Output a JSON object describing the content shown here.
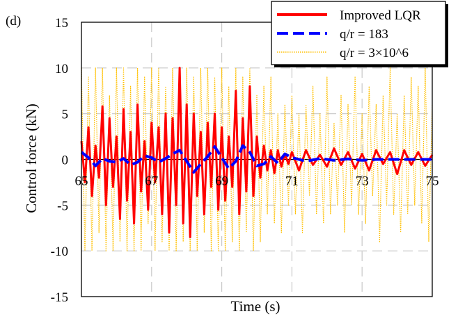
{
  "chart_data": {
    "type": "line",
    "panel_label": "(d)",
    "xlabel": "Time (s)",
    "ylabel": "Control force (kN)",
    "xlim": [
      65,
      75
    ],
    "ylim": [
      -15,
      15
    ],
    "xticks": [
      65,
      67,
      69,
      71,
      73,
      75
    ],
    "xtick_labels": [
      "65",
      "67",
      "69",
      "71",
      "73",
      "75"
    ],
    "yticks": [
      -15,
      -10,
      -5,
      0,
      5,
      10,
      15
    ],
    "ytick_labels": [
      "-15",
      "-10",
      "-5",
      "0",
      "5",
      "10",
      "15"
    ],
    "grid": true,
    "legend_position": "top-right",
    "series": [
      {
        "name": "Improved LQR",
        "color": "#ff0000",
        "style": "solid",
        "x": [
          65.0,
          65.1,
          65.2,
          65.3,
          65.4,
          65.5,
          65.6,
          65.7,
          65.8,
          65.9,
          66.0,
          66.1,
          66.2,
          66.3,
          66.4,
          66.5,
          66.6,
          66.7,
          66.8,
          66.9,
          67.0,
          67.1,
          67.2,
          67.3,
          67.4,
          67.5,
          67.6,
          67.7,
          67.8,
          67.9,
          68.0,
          68.1,
          68.2,
          68.3,
          68.4,
          68.5,
          68.6,
          68.7,
          68.8,
          68.9,
          69.0,
          69.1,
          69.2,
          69.3,
          69.4,
          69.5,
          69.6,
          69.7,
          69.8,
          69.9,
          70.0,
          70.1,
          70.2,
          70.3,
          70.4,
          70.5,
          70.6,
          70.7,
          70.8,
          70.9,
          71.0,
          71.2,
          71.4,
          71.6,
          71.8,
          72.0,
          72.2,
          72.4,
          72.6,
          72.8,
          73.0,
          73.2,
          73.4,
          73.6,
          73.8,
          74.0,
          74.2,
          74.4,
          74.6,
          74.8,
          75.0
        ],
        "values": [
          2.0,
          -2.5,
          3.5,
          -4.0,
          1.5,
          -2.0,
          5.8,
          -5.0,
          4.5,
          -3.0,
          2.5,
          -6.5,
          5.5,
          -4.5,
          3.0,
          -7.0,
          6.0,
          -3.5,
          2.0,
          -5.5,
          4.0,
          -2.5,
          3.5,
          -6.0,
          5.0,
          -8.0,
          4.5,
          -5.0,
          10.0,
          -7.0,
          6.0,
          -8.5,
          5.0,
          -4.0,
          3.0,
          -6.0,
          4.0,
          -3.0,
          5.0,
          -5.5,
          3.5,
          -4.5,
          2.5,
          -3.0,
          7.5,
          -6.0,
          4.5,
          -3.5,
          8.0,
          -4.0,
          2.5,
          -2.0,
          1.5,
          -1.2,
          1.0,
          -1.5,
          1.0,
          -0.8,
          0.6,
          -0.5,
          0.8,
          -1.2,
          1.0,
          -0.6,
          0.5,
          -0.8,
          1.2,
          -0.6,
          0.8,
          -1.0,
          0.6,
          -1.2,
          1.0,
          -0.5,
          0.8,
          -1.6,
          1.0,
          -0.6,
          0.8,
          -0.7,
          0.5
        ]
      },
      {
        "name": "q/r = 183",
        "color": "#0000ff",
        "style": "dashed",
        "x": [
          65.0,
          65.2,
          65.4,
          65.6,
          65.8,
          66.0,
          66.2,
          66.4,
          66.6,
          66.8,
          67.0,
          67.2,
          67.4,
          67.6,
          67.8,
          68.0,
          68.2,
          68.4,
          68.6,
          68.8,
          69.0,
          69.2,
          69.4,
          69.6,
          69.8,
          70.0,
          70.2,
          70.4,
          70.6,
          70.8,
          71.0,
          71.4,
          71.8,
          72.2,
          72.6,
          73.0,
          73.4,
          73.8,
          74.2,
          74.6,
          75.0
        ],
        "values": [
          0.8,
          0.2,
          -0.7,
          0.1,
          -0.2,
          -0.3,
          0.1,
          -0.6,
          -0.3,
          0.4,
          0.2,
          -0.3,
          0.1,
          0.6,
          1.0,
          -0.2,
          -1.4,
          -0.5,
          0.3,
          1.4,
          0.2,
          -1.0,
          -0.2,
          1.5,
          0.8,
          -0.7,
          -0.5,
          0.3,
          -0.4,
          0.6,
          0.2,
          -0.2,
          0.1,
          -0.1,
          0.05,
          -0.1,
          0.0,
          0.0,
          0.0,
          0.0,
          0.0
        ]
      },
      {
        "name": "q/r = 3×10^6",
        "color": "#ffc000",
        "style": "dotted",
        "x": [
          65.0,
          65.1,
          65.2,
          65.3,
          65.4,
          65.5,
          65.6,
          65.7,
          65.8,
          65.9,
          66.0,
          66.1,
          66.2,
          66.3,
          66.4,
          66.5,
          66.6,
          66.7,
          66.8,
          66.9,
          67.0,
          67.1,
          67.2,
          67.3,
          67.4,
          67.5,
          67.6,
          67.7,
          67.8,
          67.9,
          68.0,
          68.1,
          68.2,
          68.3,
          68.4,
          68.5,
          68.6,
          68.7,
          68.8,
          68.9,
          69.0,
          69.1,
          69.2,
          69.3,
          69.4,
          69.5,
          69.6,
          69.7,
          69.8,
          69.9,
          70.0,
          70.1,
          70.2,
          70.3,
          70.4,
          70.5,
          70.6,
          70.7,
          70.8,
          70.9,
          71.0,
          71.1,
          71.2,
          71.3,
          71.4,
          71.5,
          71.6,
          71.7,
          71.8,
          71.9,
          72.0,
          72.1,
          72.2,
          72.3,
          72.4,
          72.5,
          72.6,
          72.7,
          72.8,
          72.9,
          73.0,
          73.1,
          73.2,
          73.3,
          73.4,
          73.5,
          73.6,
          73.7,
          73.8,
          73.9,
          74.0,
          74.1,
          74.2,
          74.3,
          74.4,
          74.5,
          74.6,
          74.7,
          74.8,
          74.9,
          75.0
        ],
        "values": [
          10,
          -10,
          9,
          -10,
          10,
          -8,
          10,
          -10,
          7,
          -10,
          10,
          -9,
          10,
          -10,
          8,
          -10,
          10,
          -10,
          9,
          -7,
          10,
          -10,
          10,
          -9,
          8,
          -10,
          10,
          -10,
          10,
          -9,
          10,
          -10,
          9,
          -10,
          10,
          -8,
          10,
          -10,
          9,
          -10,
          10,
          -10,
          8,
          -9,
          10,
          -10,
          9,
          -8,
          10,
          -10,
          7,
          -9,
          8,
          -6,
          9,
          -7,
          5,
          -8,
          6,
          -5,
          7,
          -6,
          5,
          -8,
          6,
          -4,
          8,
          -6,
          5,
          -7,
          9,
          -6,
          4,
          -5,
          7,
          -8,
          6,
          -5,
          9,
          -6,
          5,
          -7,
          8,
          -4,
          6,
          -9,
          7,
          -5,
          10,
          -6,
          5,
          -8,
          7,
          -6,
          9,
          -5,
          8,
          -7,
          10,
          -9,
          6
        ]
      }
    ]
  }
}
